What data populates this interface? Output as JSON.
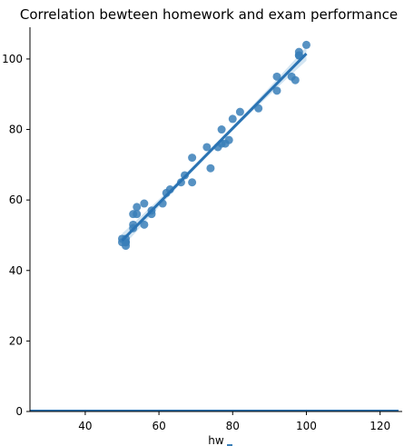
{
  "chart_data": {
    "type": "scatter",
    "title": "Correlation bewteen homework and exam performance",
    "xlabel": "hw",
    "ylabel": "",
    "xlim": [
      25,
      126
    ],
    "ylim": [
      0,
      109
    ],
    "xticks": [
      40,
      60,
      80,
      100,
      120
    ],
    "yticks": [
      0,
      20,
      40,
      60,
      80,
      100
    ],
    "grid": false,
    "spines": [
      "left",
      "bottom"
    ],
    "colors": {
      "points": "#3a7fb8",
      "fit_line": "#2a73b3",
      "confidence_band": "#9ec6e3",
      "axis": "#000000"
    },
    "series": [
      {
        "x": [
          50,
          50,
          51,
          51,
          51,
          51,
          53,
          53,
          53,
          54,
          54,
          56,
          56,
          58,
          58,
          61,
          62,
          63,
          66,
          67,
          69,
          69,
          73,
          74,
          76,
          77,
          77,
          78,
          79,
          80,
          82,
          87,
          92,
          92,
          96,
          97,
          98,
          98,
          98,
          100
        ],
        "y": [
          49,
          48,
          47,
          48,
          49,
          48,
          52,
          53,
          56,
          56,
          58,
          53,
          59,
          56,
          57,
          59,
          62,
          63,
          65,
          67,
          65,
          72,
          75,
          69,
          75,
          80,
          76,
          76,
          77,
          83,
          85,
          86,
          91,
          95,
          95,
          94,
          101,
          102,
          101,
          104
        ]
      }
    ],
    "regression": {
      "x_start": 50,
      "x_end": 100,
      "y_start": 48.5,
      "y_end": 101.5
    },
    "baseline": {
      "x_start": 25,
      "x_end": 125,
      "y": 0
    }
  }
}
